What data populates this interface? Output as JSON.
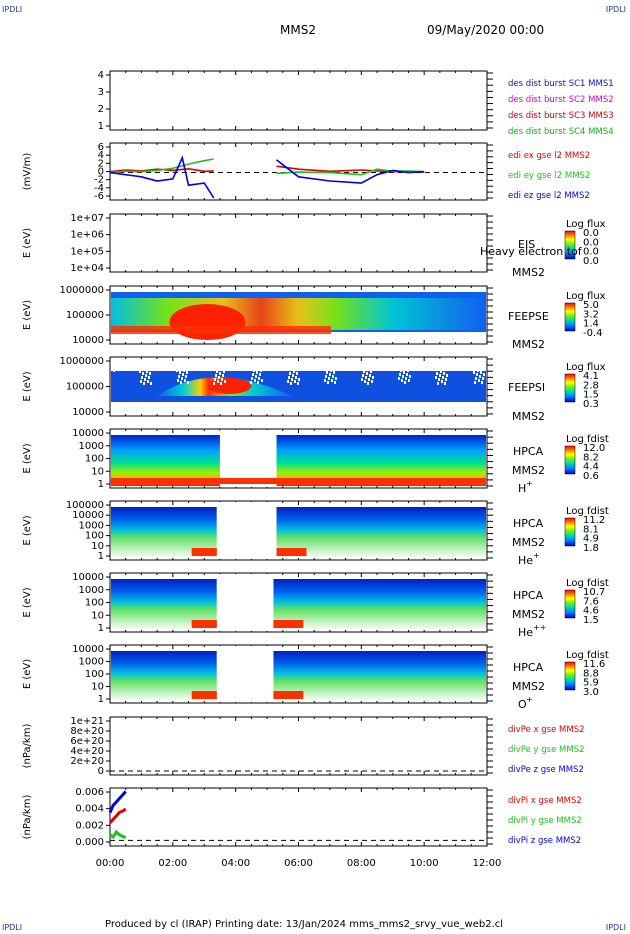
{
  "header": {
    "corner_left_top": "IPDLI",
    "corner_right_top": "IPDLI",
    "corner_left_bottom": "IPDLI",
    "corner_right_bottom": "IPDLI",
    "spacecraft": "MMS2",
    "datetime": "09/May/2020 00:00"
  },
  "footer": {
    "text": "Produced by cl (IRAP)   Printing date: 13/Jan/2024   mms_mms2_srvy_vue_web2.cl"
  },
  "colors": {
    "mms1": "#1010c0",
    "mms2": "#d000d0",
    "mms3": "#d00000",
    "mms4": "#10b010",
    "ex": "#e00000",
    "ey": "#20c020",
    "ez": "#0000e0"
  },
  "chart_data": [
    {
      "type": "line",
      "title": "",
      "ylabel": "",
      "ylim": [
        0.5,
        4.5
      ],
      "yticks": [
        "1",
        "2",
        "3",
        "4"
      ],
      "legend": [
        "des dist burst SC1 MMS1",
        "des dist burst SC2 MMS2",
        "des dist burst SC3 MMS3",
        "des dist burst SC4 MMS4"
      ],
      "series": []
    },
    {
      "type": "line",
      "ylabel": "(mV/m)",
      "ylim": [
        -6.5,
        7
      ],
      "yticks": [
        "6",
        "4",
        "2",
        "0",
        "-2",
        "-4",
        "-6"
      ],
      "legend": [
        "edi ex gse l2 MMS2",
        "edi ey gse l2 MMS2",
        "edi ez gse l2 MMS2"
      ],
      "series": [
        {
          "name": "edi ex gse l2 MMS2",
          "x": [
            0.0,
            0.5,
            1.0,
            1.5,
            2.0,
            2.5,
            3.0,
            3.3,
            5.3,
            6.0,
            7.0,
            8.0,
            8.5,
            9.0,
            9.5,
            10.0
          ],
          "y": [
            0.2,
            0.6,
            0.4,
            0.8,
            0.5,
            0.9,
            0.3,
            0.4,
            1.5,
            0.8,
            0.3,
            0.6,
            0.4,
            0.2,
            0.3,
            0.1
          ]
        },
        {
          "name": "edi ey gse l2 MMS2",
          "x": [
            0.0,
            0.5,
            1.0,
            1.5,
            2.0,
            2.5,
            3.0,
            3.3,
            5.3,
            6.0,
            7.0,
            8.0,
            8.5,
            9.0,
            9.5,
            10.0
          ],
          "y": [
            0.0,
            0.3,
            0.2,
            0.5,
            1.0,
            2.0,
            2.8,
            3.2,
            -0.2,
            0.1,
            0.0,
            -0.5,
            0.8,
            0.3,
            0.4,
            0.2
          ]
        },
        {
          "name": "edi ez gse l2 MMS2",
          "x": [
            0.0,
            0.5,
            1.0,
            1.5,
            2.0,
            2.3,
            2.5,
            3.0,
            3.3,
            5.3,
            6.0,
            7.0,
            8.0,
            8.5,
            9.0,
            9.5,
            10.0
          ],
          "y": [
            0.0,
            -0.5,
            -1.0,
            -2.0,
            -1.5,
            3.5,
            -3.0,
            -2.5,
            -6.0,
            3.0,
            -1.0,
            -2.0,
            -2.5,
            -0.5,
            0.5,
            0.0,
            0.2
          ]
        }
      ]
    },
    {
      "type": "heatmap",
      "ylabel": "E (eV)",
      "yticks": [
        "1e+07",
        "1e+06",
        "1e+05",
        "1e+04"
      ],
      "instrument": "EIS",
      "species": "Heavy electron tof",
      "spacecraft": "MMS2",
      "colorbar": {
        "label": "Log flux",
        "ticks": [
          "0.0",
          "0.0",
          "0.0",
          "0.0"
        ]
      }
    },
    {
      "type": "heatmap",
      "ylabel": "E (eV)",
      "yticks": [
        "1000000",
        "100000",
        "10000"
      ],
      "instrument": "FEEPSE",
      "spacecraft": "MMS2",
      "colorbar": {
        "label": "Log flux",
        "ticks": [
          "5.0",
          "3.2",
          "1.4",
          "-0.4"
        ]
      }
    },
    {
      "type": "heatmap",
      "ylabel": "E (eV)",
      "yticks": [
        "1000000",
        "100000",
        "10000"
      ],
      "instrument": "FEEPSI",
      "spacecraft": "MMS2",
      "colorbar": {
        "label": "Log flux",
        "ticks": [
          "4.1",
          "2.8",
          "1.5",
          "0.3"
        ]
      }
    },
    {
      "type": "heatmap",
      "ylabel": "E (eV)",
      "yticks": [
        "10000",
        "1000",
        "100",
        "10",
        "1"
      ],
      "instrument": "HPCA",
      "spacecraft": "MMS2",
      "species_base": "H",
      "species_sup": "+",
      "colorbar": {
        "label": "Log fdist",
        "ticks": [
          "12.0",
          "8.2",
          "4.4",
          "0.6"
        ]
      }
    },
    {
      "type": "heatmap",
      "ylabel": "E (eV)",
      "yticks": [
        "100000",
        "10000",
        "1000",
        "100",
        "10",
        "1"
      ],
      "instrument": "HPCA",
      "spacecraft": "MMS2",
      "species_base": "He",
      "species_sup": "+",
      "colorbar": {
        "label": "Log fdist",
        "ticks": [
          "11.2",
          "8.1",
          "4.9",
          "1.8"
        ]
      }
    },
    {
      "type": "heatmap",
      "ylabel": "E (eV)",
      "yticks": [
        "10000",
        "1000",
        "100",
        "10",
        "1"
      ],
      "instrument": "HPCA",
      "spacecraft": "MMS2",
      "species_base": "He",
      "species_sup": "++",
      "colorbar": {
        "label": "Log fdist",
        "ticks": [
          "10.7",
          "7.6",
          "4.6",
          "1.5"
        ]
      }
    },
    {
      "type": "heatmap",
      "ylabel": "E (eV)",
      "yticks": [
        "10000",
        "1000",
        "100",
        "10",
        "1"
      ],
      "instrument": "HPCA",
      "spacecraft": "MMS2",
      "species_base": "O",
      "species_sup": "+",
      "colorbar": {
        "label": "Log fdist",
        "ticks": [
          "11.6",
          "8.8",
          "5.9",
          "3.0"
        ]
      }
    },
    {
      "type": "line",
      "ylabel": "(nPa/km)",
      "yticks": [
        "1e+21",
        "8e+20",
        "6e+20",
        "4e+20",
        "2e+20",
        "0"
      ],
      "legend": [
        "divPe x gse MMS2",
        "divPe y gse MMS2",
        "divPe z gse MMS2"
      ],
      "series": []
    },
    {
      "type": "line",
      "ylabel": "(nPa/km)",
      "yticks": [
        "0.006",
        "0.004",
        "0.002",
        "0.000"
      ],
      "ylim": [
        -0.0008,
        0.0075
      ],
      "legend": [
        "divPi x gse MMS2",
        "divPi y gse MMS2",
        "divPi z gse MMS2"
      ],
      "series": [
        {
          "name": "divPi x gse MMS2",
          "x": [
            0.0,
            0.1,
            0.2,
            0.3,
            0.4,
            0.5
          ],
          "y": [
            0.0025,
            0.003,
            0.0035,
            0.004,
            0.0042,
            0.0045
          ]
        },
        {
          "name": "divPi y gse MMS2",
          "x": [
            0.0,
            0.1,
            0.2,
            0.3,
            0.4,
            0.5
          ],
          "y": [
            0.0008,
            0.0005,
            0.0012,
            0.0008,
            0.0006,
            0.0004
          ]
        },
        {
          "name": "divPi z gse MMS2",
          "x": [
            0.0,
            0.1,
            0.2,
            0.3,
            0.4,
            0.5
          ],
          "y": [
            0.004,
            0.005,
            0.0055,
            0.006,
            0.0065,
            0.007
          ]
        }
      ]
    }
  ],
  "xaxis": {
    "ticks": [
      "00:00",
      "02:00",
      "04:00",
      "06:00",
      "08:00",
      "10:00",
      "12:00"
    ],
    "range_hours": [
      0,
      12
    ]
  }
}
